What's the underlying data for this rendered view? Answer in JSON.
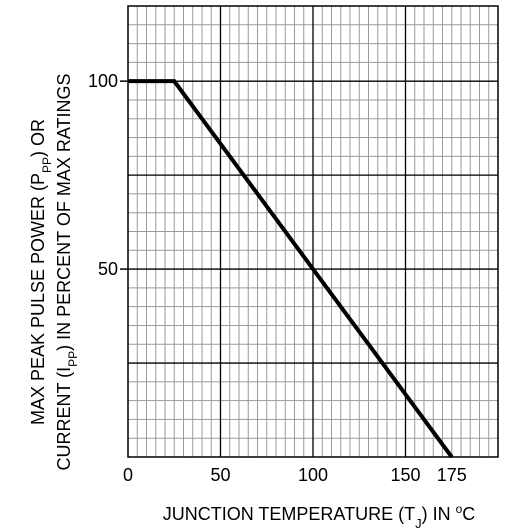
{
  "chart_data": {
    "type": "line",
    "title": "",
    "xlabel": "JUNCTION TEMPERATURE (T",
    "xlabel_sub": "J",
    "xlabel_suffix": ") IN ",
    "xlabel_sup": "o",
    "xlabel_end": "C",
    "ylabel_line1": {
      "pre": "MAX PEAK PULSE POWER (P",
      "sub": "PP",
      "post": ") OR"
    },
    "ylabel_line2": {
      "pre": "CURRENT (I",
      "sub": "PP",
      "post": ") IN PERCENT OF MAX RATINGS"
    },
    "xlim": [
      0,
      200
    ],
    "ylim": [
      0,
      120
    ],
    "x_ticks": [
      {
        "value": 0,
        "label": "0"
      },
      {
        "value": 50,
        "label": "50"
      },
      {
        "value": 100,
        "label": "100"
      },
      {
        "value": 150,
        "label": "150"
      },
      {
        "value": 175,
        "label": "175"
      }
    ],
    "y_ticks": [
      {
        "value": 50,
        "label": "50"
      },
      {
        "value": 100,
        "label": "100"
      }
    ],
    "grid": true,
    "minor_grid_step_x": 5,
    "minor_grid_step_y": 5,
    "major_grid_step_x": 50,
    "major_grid_step_y": 25,
    "series": [
      {
        "x": [
          0,
          25,
          175
        ],
        "y": [
          100,
          100,
          0
        ]
      }
    ],
    "colors": {
      "line": "#000000",
      "minor_grid": "#9a9a9a",
      "major_grid": "#000000",
      "background": "#ffffff"
    }
  }
}
